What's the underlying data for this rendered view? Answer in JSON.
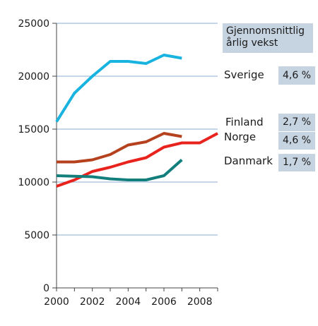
{
  "chart_data": {
    "type": "line",
    "x": [
      2000,
      2001,
      2002,
      2003,
      2004,
      2005,
      2006,
      2007,
      2008,
      2009
    ],
    "xlim": [
      2000,
      2009
    ],
    "ylim": [
      0,
      25000
    ],
    "xticks": [
      2000,
      2002,
      2004,
      2006,
      2008
    ],
    "yticks": [
      0,
      5000,
      10000,
      15000,
      20000,
      25000
    ],
    "grid": "horizontal",
    "legend_title": "Gjennomsnittlig årlig vekst",
    "series": [
      {
        "name": "Sverige",
        "color": "#19b3e0",
        "growth": "4,6 %",
        "values": [
          15700,
          18400,
          20000,
          21400,
          21400,
          21200,
          22000,
          21700,
          null,
          null
        ]
      },
      {
        "name": "Finland",
        "color": "#b5411e",
        "growth": "2,7 %",
        "values": [
          11900,
          11900,
          12100,
          12600,
          13500,
          13800,
          14600,
          14300,
          null,
          null
        ]
      },
      {
        "name": "Norge",
        "color": "#e8231d",
        "growth": "4,6 %",
        "values": [
          9600,
          10200,
          11000,
          11400,
          11900,
          12300,
          13300,
          13700,
          13700,
          14600
        ]
      },
      {
        "name": "Danmark",
        "color": "#127f7c",
        "growth": "1,7 %",
        "values": [
          10600,
          10550,
          10500,
          10300,
          10200,
          10200,
          10600,
          12100,
          null,
          null
        ]
      }
    ]
  }
}
